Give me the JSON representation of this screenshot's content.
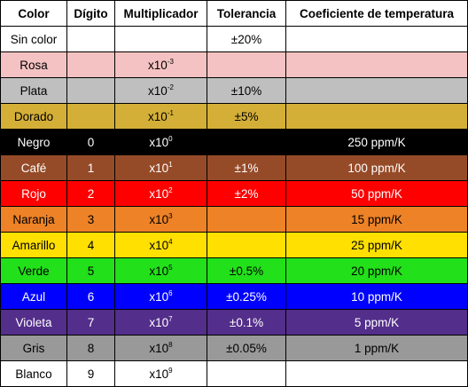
{
  "headers": [
    "Color",
    "Dígito",
    "Multiplicador",
    "Tolerancia",
    "Coeficiente de temperatura"
  ],
  "rows": [
    {
      "color": "Sin color",
      "digit": "",
      "mult_base": "",
      "mult_exp": "",
      "tolerance": "±20%",
      "tempco": "",
      "bg": "#ffffff",
      "fg": "#000000"
    },
    {
      "color": "Rosa",
      "digit": "",
      "mult_base": "x10",
      "mult_exp": "-3",
      "tolerance": "",
      "tempco": "",
      "bg": "#f4c2c2",
      "fg": "#000000"
    },
    {
      "color": "Plata",
      "digit": "",
      "mult_base": "x10",
      "mult_exp": "-2",
      "tolerance": "±10%",
      "tempco": "",
      "bg": "#bfbfbf",
      "fg": "#000000"
    },
    {
      "color": "Dorado",
      "digit": "",
      "mult_base": "x10",
      "mult_exp": "-1",
      "tolerance": "±5%",
      "tempco": "",
      "bg": "#d4af37",
      "fg": "#000000"
    },
    {
      "color": "Negro",
      "digit": "0",
      "mult_base": "x10",
      "mult_exp": "0",
      "tolerance": "",
      "tempco": "250 ppm/K",
      "bg": "#000000",
      "fg": "#ffffff"
    },
    {
      "color": "Café",
      "digit": "1",
      "mult_base": "x10",
      "mult_exp": "1",
      "tolerance": "±1%",
      "tempco": "100 ppm/K",
      "bg": "#964b28",
      "fg": "#ffffff"
    },
    {
      "color": "Rojo",
      "digit": "2",
      "mult_base": "x10",
      "mult_exp": "2",
      "tolerance": "±2%",
      "tempco": "50 ppm/K",
      "bg": "#ff0000",
      "fg": "#ffffff"
    },
    {
      "color": "Naranja",
      "digit": "3",
      "mult_base": "x10",
      "mult_exp": "3",
      "tolerance": "",
      "tempco": "15 ppm/K",
      "bg": "#ed8226",
      "fg": "#000000"
    },
    {
      "color": "Amarillo",
      "digit": "4",
      "mult_base": "x10",
      "mult_exp": "4",
      "tolerance": "",
      "tempco": "25 ppm/K",
      "bg": "#ffe000",
      "fg": "#000000"
    },
    {
      "color": "Verde",
      "digit": "5",
      "mult_base": "x10",
      "mult_exp": "5",
      "tolerance": "±0.5%",
      "tempco": "20 ppm/K",
      "bg": "#22e01a",
      "fg": "#000000"
    },
    {
      "color": "Azul",
      "digit": "6",
      "mult_base": "x10",
      "mult_exp": "6",
      "tolerance": "±0.25%",
      "tempco": "10 ppm/K",
      "bg": "#0000ff",
      "fg": "#ffffff"
    },
    {
      "color": "Violeta",
      "digit": "7",
      "mult_base": "x10",
      "mult_exp": "7",
      "tolerance": "±0.1%",
      "tempco": "5 ppm/K",
      "bg": "#532e8a",
      "fg": "#ffffff"
    },
    {
      "color": "Gris",
      "digit": "8",
      "mult_base": "x10",
      "mult_exp": "8",
      "tolerance": "±0.05%",
      "tempco": "1 ppm/K",
      "bg": "#999999",
      "fg": "#000000"
    },
    {
      "color": "Blanco",
      "digit": "9",
      "mult_base": "x10",
      "mult_exp": "9",
      "tolerance": "",
      "tempco": "",
      "bg": "#ffffff",
      "fg": "#000000"
    }
  ]
}
